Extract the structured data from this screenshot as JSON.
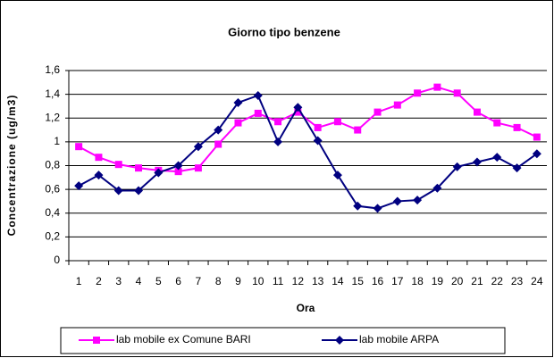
{
  "chart_data": {
    "type": "line",
    "title": "Giorno tipo benzene",
    "x_label": "Ora",
    "y_label": "Concentrazione (ug/m3)",
    "categories": [
      "1",
      "2",
      "3",
      "4",
      "5",
      "6",
      "7",
      "8",
      "9",
      "10",
      "11",
      "12",
      "13",
      "14",
      "15",
      "16",
      "17",
      "18",
      "19",
      "20",
      "21",
      "22",
      "23",
      "24"
    ],
    "series": [
      {
        "name": "lab mobile ex Comune BARI",
        "color": "#ff00ff",
        "marker": "square",
        "values": [
          0.96,
          0.87,
          0.81,
          0.78,
          0.76,
          0.75,
          0.78,
          0.98,
          1.16,
          1.24,
          1.17,
          1.25,
          1.12,
          1.17,
          1.1,
          1.25,
          1.31,
          1.41,
          1.46,
          1.41,
          1.25,
          1.16,
          1.12,
          1.04
        ]
      },
      {
        "name": "lab mobile ARPA",
        "color": "#000080",
        "marker": "diamond",
        "values": [
          0.63,
          0.72,
          0.59,
          0.59,
          0.74,
          0.8,
          0.96,
          1.1,
          1.33,
          1.39,
          1.0,
          1.29,
          1.01,
          0.72,
          0.46,
          0.44,
          0.5,
          0.51,
          0.61,
          0.79,
          0.83,
          0.87,
          0.78,
          0.9
        ]
      }
    ],
    "ylim": [
      0,
      1.6
    ],
    "yticks": [
      0,
      {
        "value": 0.2,
        "label": "0,2"
      },
      {
        "value": 0.4,
        "label": "0,4"
      },
      {
        "value": 0.6,
        "label": "0,6"
      },
      {
        "value": 0.8,
        "label": "0,8"
      },
      1,
      {
        "value": 1.2,
        "label": "1,2"
      },
      {
        "value": 1.4,
        "label": "1,4"
      },
      {
        "value": 1.6,
        "label": "1,6"
      }
    ],
    "grid": true,
    "legend": "bottom"
  }
}
